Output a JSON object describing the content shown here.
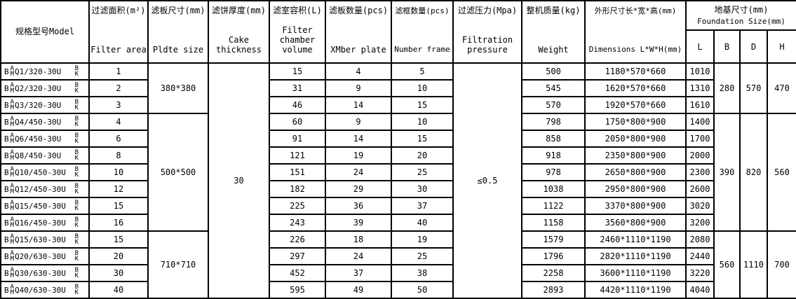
{
  "table": {
    "columns": {
      "model": {
        "zh": "规格型号Model"
      },
      "filter_area": {
        "zh": "过滤面积(m²)",
        "en": "Filter area"
      },
      "plate_size": {
        "zh": "滤板尺寸(mm)",
        "en": "Pldte size"
      },
      "cake_thickness": {
        "zh": "滤饼厚度(mm)",
        "en": "Cake thickness"
      },
      "volume": {
        "zh": "滤室容积(L)",
        "en": "Filter chamber volume"
      },
      "plates": {
        "zh": "滤板数量(pcs)",
        "en": "XMber plate"
      },
      "frames": {
        "zh": "滤框数量(pcs)",
        "en": "Number frame"
      },
      "pressure": {
        "zh": "过滤压力(Mpa)",
        "en": "Filtration pressure"
      },
      "weight": {
        "zh": "整机质量(kg)",
        "en": "Weight"
      },
      "dimensions": {
        "zh": "外形尺寸长*宽*高(mm)",
        "en": "Dimensions L*W*H(mm)"
      },
      "foundation": {
        "zh": "地基尺寸(mm)",
        "en": "Foundation Size(mm)",
        "subs": [
          "L",
          "B",
          "D",
          "H"
        ]
      }
    },
    "model_affix": {
      "prefix": "B",
      "stack1": [
        "A",
        "M"
      ],
      "stack2": [
        "B",
        "K"
      ]
    },
    "merged": {
      "cake_thickness": "30",
      "pressure": "≤0.5"
    },
    "groups": [
      {
        "rows": 3,
        "plate_size": "380*380",
        "b": "280",
        "d": "570",
        "h": "470"
      },
      {
        "rows": 7,
        "plate_size": "500*500",
        "b": "390",
        "d": "820",
        "h": "560"
      },
      {
        "rows": 4,
        "plate_size": "710*710",
        "b": "560",
        "d": "1110",
        "h": "700"
      }
    ],
    "rows": [
      {
        "model": "Q1/320-30U",
        "area": "1",
        "volume": "15",
        "plates": "4",
        "frames": "5",
        "weight": "500",
        "dims": "1180*570*660",
        "l": "1010"
      },
      {
        "model": "Q2/320-30U",
        "area": "2",
        "volume": "31",
        "plates": "9",
        "frames": "10",
        "weight": "545",
        "dims": "1620*570*660",
        "l": "1310"
      },
      {
        "model": "Q3/320-30U",
        "area": "3",
        "volume": "46",
        "plates": "14",
        "frames": "15",
        "weight": "570",
        "dims": "1920*570*660",
        "l": "1610"
      },
      {
        "model": "Q4/450-30U",
        "area": "4",
        "volume": "60",
        "plates": "9",
        "frames": "10",
        "weight": "798",
        "dims": "1750*800*900",
        "l": "1400"
      },
      {
        "model": "Q6/450-30U",
        "area": "6",
        "volume": "91",
        "plates": "14",
        "frames": "15",
        "weight": "858",
        "dims": "2050*800*900",
        "l": "1700"
      },
      {
        "model": "Q8/450-30U",
        "area": "8",
        "volume": "121",
        "plates": "19",
        "frames": "20",
        "weight": "918",
        "dims": "2350*800*900",
        "l": "2000"
      },
      {
        "model": "Q10/450-30U",
        "area": "10",
        "volume": "151",
        "plates": "24",
        "frames": "25",
        "weight": "978",
        "dims": "2650*800*900",
        "l": "2300"
      },
      {
        "model": "Q12/450-30U",
        "area": "12",
        "volume": "182",
        "plates": "29",
        "frames": "30",
        "weight": "1038",
        "dims": "2950*800*900",
        "l": "2600"
      },
      {
        "model": "Q15/450-30U",
        "area": "15",
        "volume": "225",
        "plates": "36",
        "frames": "37",
        "weight": "1122",
        "dims": "3370*800*900",
        "l": "3020"
      },
      {
        "model": "Q16/450-30U",
        "area": "16",
        "volume": "243",
        "plates": "39",
        "frames": "40",
        "weight": "1158",
        "dims": "3560*800*900",
        "l": "3200"
      },
      {
        "model": "Q15/630-30U",
        "area": "15",
        "volume": "226",
        "plates": "18",
        "frames": "19",
        "weight": "1579",
        "dims": "2460*1110*1190",
        "l": "2080"
      },
      {
        "model": "Q20/630-30U",
        "area": "20",
        "volume": "297",
        "plates": "24",
        "frames": "25",
        "weight": "1796",
        "dims": "2820*1110*1190",
        "l": "2440"
      },
      {
        "model": "Q30/630-30U",
        "area": "30",
        "volume": "452",
        "plates": "37",
        "frames": "38",
        "weight": "2258",
        "dims": "3600*1110*1190",
        "l": "3220"
      },
      {
        "model": "Q40/630-30U",
        "area": "40",
        "volume": "595",
        "plates": "49",
        "frames": "50",
        "weight": "2893",
        "dims": "4420*1110*1190",
        "l": "4040"
      }
    ]
  }
}
